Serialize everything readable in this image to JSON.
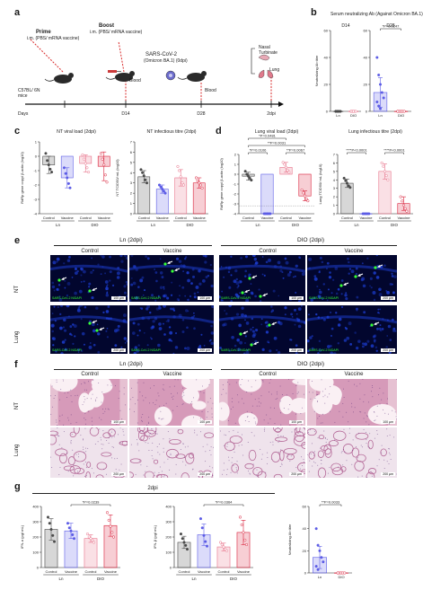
{
  "panel_a": {
    "letter": "a",
    "prime_label": "Prime",
    "prime_sub": "i.m. (PBS/ mRNA vaccine)",
    "boost_label": "Boost",
    "boost_sub": "i.m. (PBS/ mRNA vaccine)",
    "mice_label": "C57BL/ 6N mice",
    "challenge_label": "SARS-CoV-2",
    "challenge_sub": "(Omicron BA.1) (0dpi)",
    "blood1": "Blood",
    "blood2": "Blood",
    "nasal": "Nasal Turbinate",
    "lung": "Lung",
    "days": "Days",
    "d14": "D14",
    "d28": "D28",
    "dpi2": "2dpi"
  },
  "panel_b": {
    "letter": "b",
    "title": "Serum neutralizing Ab (Against Omicron BA.1)"
  },
  "panel_c": {
    "letter": "c"
  },
  "panel_d": {
    "letter": "d"
  },
  "panel_e": {
    "letter": "e",
    "ln_header": "Ln (2dpi)",
    "dio_header": "DIO (2dpi)",
    "control": "Control",
    "vaccine": "Vaccine",
    "row_nt": "NT",
    "row_lung": "Lung",
    "stain": "SARS-CoV-2 N/DAPI",
    "scale_100": "100 μm",
    "scale_200": "200 μm"
  },
  "panel_f": {
    "letter": "f",
    "ln_header": "Ln (2dpi)",
    "dio_header": "DIO (2dpi)",
    "control": "Control",
    "vaccine": "Vaccine",
    "row_nt": "NT",
    "row_lung": "Lung",
    "scale_100": "100 μm",
    "scale_200": "200 μm"
  },
  "panel_g": {
    "letter": "g",
    "header": "2dpi"
  },
  "colors": {
    "ln_control": "#4a4a4a",
    "ln_vaccine": "#5c5ce6",
    "dio_control": "#e8728a",
    "dio_vaccine": "#d9203a",
    "fluor_bg": "#02062e",
    "dapi": "#1d3fd6",
    "green": "#36ff36"
  },
  "chart_data": [
    {
      "id": "b_d14",
      "type": "scatter",
      "panel": "b",
      "subtitle": "D14",
      "ylabel": "Neutralizing Ab titre",
      "categories": [
        "Ln",
        "DIO"
      ],
      "yticks": [
        "0",
        "20",
        "40",
        "60"
      ],
      "ylim": [
        0,
        60
      ],
      "values": [
        0,
        0
      ],
      "errors": [
        0,
        0
      ],
      "points": [
        [
          0,
          0,
          0,
          0,
          0,
          0,
          0,
          0
        ],
        [
          0,
          0,
          0,
          0,
          0,
          0,
          0,
          0
        ]
      ]
    },
    {
      "id": "b_d28",
      "type": "bar",
      "panel": "b",
      "subtitle": "D28",
      "categories": [
        "Ln",
        "DIO"
      ],
      "yticks": [
        "0",
        "20",
        "40",
        "60"
      ],
      "ylim": [
        0,
        60
      ],
      "values": [
        14,
        0
      ],
      "errors": [
        11,
        0
      ],
      "points": [
        [
          40,
          27,
          20,
          14,
          10,
          7,
          4,
          2
        ],
        [
          0,
          0,
          0,
          0,
          0,
          0
        ]
      ],
      "annotations": [
        {
          "text": "*P=0.0247",
          "pair": [
            0,
            1
          ],
          "level": 0
        }
      ]
    },
    {
      "id": "c_viral",
      "type": "bar",
      "panel": "c",
      "title": "NT viral load (2dpi)",
      "ylabel": "RdRp gene copy/ β-actin (log10)",
      "categories": [
        "Control",
        "Vaccine",
        "Control",
        "Vaccine"
      ],
      "groups": [
        "Ln",
        "DIO"
      ],
      "yticks": [
        "-4",
        "-3",
        "-2",
        "-1",
        "0",
        "1"
      ],
      "ylim": [
        -4,
        1
      ],
      "values": [
        -0.6,
        -1.5,
        -0.5,
        -0.7
      ],
      "errors": [
        0.6,
        0.7,
        0.6,
        1.0
      ],
      "points": [
        [
          0.2,
          -0.3,
          -0.6,
          -0.9,
          -1.1
        ],
        [
          -0.8,
          -1.2,
          -1.5,
          -1.9,
          -2.2
        ],
        [
          0.1,
          -0.2,
          -0.5,
          -0.8,
          -1.1
        ],
        [
          0.2,
          -0.2,
          -0.6,
          -1.3,
          -1.8
        ]
      ]
    },
    {
      "id": "c_inf",
      "type": "bar",
      "panel": "c",
      "title": "NT infectious titre (2dpi)",
      "ylabel": "NT TCID50/ mL (log10)",
      "categories": [
        "Control",
        "Vaccine",
        "Control",
        "Vaccine"
      ],
      "groups": [
        "Ln",
        "DIO"
      ],
      "yticks": [
        "0",
        "1",
        "2",
        "3",
        "4",
        "5",
        "6",
        "7"
      ],
      "ylim": [
        0,
        7
      ],
      "values": [
        3.6,
        2.4,
        3.5,
        3.0
      ],
      "errors": [
        0.6,
        0.4,
        0.8,
        0.5
      ],
      "points": [
        [
          4.3,
          4.0,
          3.7,
          3.3,
          3.0
        ],
        [
          2.8,
          2.6,
          2.4,
          2.2,
          2.0
        ],
        [
          4.6,
          4.2,
          3.6,
          3.0,
          2.8
        ],
        [
          3.5,
          3.2,
          3.0,
          2.8,
          2.5
        ]
      ]
    },
    {
      "id": "d_viral",
      "type": "bar",
      "panel": "d",
      "title": "Lung viral load (2dpi)",
      "ylabel": "RdRp gene copy/ β-actin (log10)",
      "categories": [
        "Control",
        "Vaccine",
        "Control",
        "Vaccine"
      ],
      "groups": [
        "Ln",
        "DIO"
      ],
      "yticks": [
        "-4",
        "-3",
        "-2",
        "-1",
        "0",
        "1",
        "2"
      ],
      "ylim": [
        -4,
        2
      ],
      "values": [
        -0.2,
        -4.0,
        0.7,
        -2.2
      ],
      "errors": [
        0.4,
        0,
        0.5,
        0.5
      ],
      "points": [
        [
          0.3,
          0.0,
          -0.2,
          -0.4,
          -0.6
        ],
        [
          -4,
          -4,
          -4,
          -4,
          -4
        ],
        [
          1.2,
          1.0,
          0.7,
          0.4,
          0.2
        ],
        [
          -1.6,
          -1.9,
          -2.2,
          -2.5,
          -2.7
        ]
      ],
      "annotations": [
        {
          "text": "*P=0.0481",
          "pair": [
            0,
            2
          ],
          "level": 2
        },
        {
          "text": "**P=0.0031",
          "pair": [
            0,
            3
          ],
          "level": 1
        },
        {
          "text": "*P=0.0106",
          "pair": [
            0,
            1
          ],
          "level": 0
        },
        {
          "text": "**P=0.0067",
          "pair": [
            2,
            3
          ],
          "level": 0
        }
      ]
    },
    {
      "id": "d_inf",
      "type": "bar",
      "panel": "d",
      "title": "Lung infectious titre (2dpi)",
      "ylabel": "Lung TCID50/ mL (log10)",
      "categories": [
        "Control",
        "Vaccine",
        "Control",
        "Vaccine"
      ],
      "groups": [
        "Ln",
        "DIO"
      ],
      "yticks": [
        "0",
        "1",
        "2",
        "3",
        "4",
        "5",
        "6",
        "7"
      ],
      "ylim": [
        0,
        7
      ],
      "values": [
        3.6,
        0,
        5.0,
        1.2
      ],
      "errors": [
        0.5,
        0,
        0.9,
        0.8
      ],
      "points": [
        [
          4.2,
          3.9,
          3.6,
          3.3,
          3.1
        ],
        [
          0,
          0,
          0,
          0,
          0
        ],
        [
          6.0,
          5.6,
          5.0,
          4.5,
          4.0
        ],
        [
          2.0,
          1.5,
          1.0,
          0.6,
          0.3
        ]
      ],
      "annotations": [
        {
          "text": "****P<0.0001",
          "pair": [
            0,
            1
          ],
          "level": 0
        },
        {
          "text": "****P<0.0001",
          "pair": [
            2,
            3
          ],
          "level": 0
        }
      ]
    },
    {
      "id": "g_ifna",
      "type": "bar",
      "panel": "g",
      "ylabel": "IFN-α (pg/ mL)",
      "categories": [
        "Control",
        "Vaccine",
        "Control",
        "Vaccine"
      ],
      "groups": [
        "Ln",
        "DIO"
      ],
      "yticks": [
        "0",
        "100",
        "200",
        "300",
        "400"
      ],
      "ylim": [
        0,
        400
      ],
      "values": [
        250,
        240,
        190,
        275
      ],
      "errors": [
        70,
        50,
        25,
        70
      ],
      "points": [
        [
          330,
          290,
          250,
          210,
          170
        ],
        [
          290,
          260,
          240,
          215,
          190
        ],
        [
          220,
          200,
          190,
          180,
          165
        ],
        [
          360,
          310,
          270,
          230,
          200
        ]
      ],
      "annotations": [
        {
          "text": "*P=0.0239",
          "pair": [
            1,
            3
          ],
          "level": 0
        }
      ]
    },
    {
      "id": "g_ifnb",
      "type": "bar",
      "panel": "g",
      "ylabel": "IFN-β (pg/ mL)",
      "categories": [
        "Control",
        "Vaccine",
        "Control",
        "Vaccine"
      ],
      "groups": [
        "Ln",
        "DIO"
      ],
      "yticks": [
        "0",
        "100",
        "200",
        "300",
        "400"
      ],
      "ylim": [
        0,
        400
      ],
      "values": [
        165,
        215,
        135,
        230
      ],
      "errors": [
        40,
        70,
        25,
        80
      ],
      "points": [
        [
          220,
          190,
          165,
          145,
          120
        ],
        [
          320,
          260,
          210,
          170,
          140
        ],
        [
          165,
          150,
          135,
          120,
          110
        ],
        [
          330,
          280,
          230,
          180,
          150
        ]
      ],
      "annotations": [
        {
          "text": "*P=0.0364",
          "pair": [
            1,
            3
          ],
          "level": 0
        }
      ]
    },
    {
      "id": "g_nab",
      "type": "bar",
      "panel": "g",
      "ylabel": "Neutralizing Ab titre",
      "categories": [
        "Ln",
        "DIO"
      ],
      "yticks": [
        "0",
        "20",
        "40",
        "60"
      ],
      "ylim": [
        0,
        60
      ],
      "values": [
        14,
        0
      ],
      "errors": [
        10,
        0
      ],
      "points": [
        [
          40,
          25,
          20,
          14,
          10,
          6,
          3
        ],
        [
          0,
          0,
          0,
          0,
          0,
          0
        ]
      ],
      "annotations": [
        {
          "text": "**P=0.0033",
          "pair": [
            0,
            1
          ],
          "level": 0
        }
      ]
    }
  ]
}
